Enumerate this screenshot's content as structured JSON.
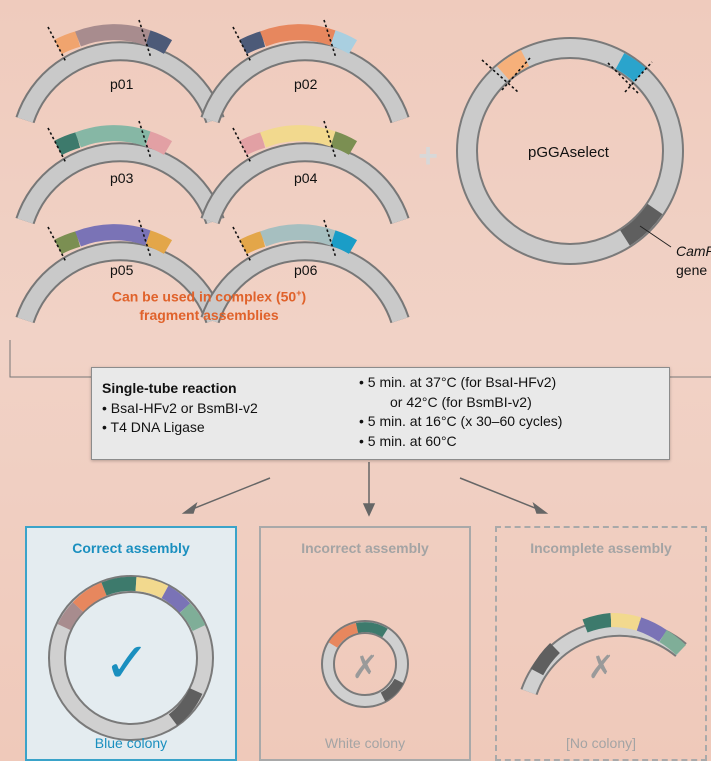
{
  "fragments": [
    {
      "label": "p01",
      "left": "#f0a46e",
      "middle": "#a88c8e",
      "right": "#4c5a78"
    },
    {
      "label": "p02",
      "left": "#4c5a78",
      "middle": "#e7875e",
      "right": "#a9cfe0"
    },
    {
      "label": "p03",
      "left": "#3d7a6c",
      "middle": "#86b7a5",
      "right": "#e2a0a4"
    },
    {
      "label": "p04",
      "left": "#e2a0a4",
      "middle": "#f2d98e",
      "right": "#7b8f52"
    },
    {
      "label": "p05",
      "left": "#7b8f52",
      "middle": "#7a73b6",
      "right": "#e3a649"
    },
    {
      "label": "p06",
      "left": "#e3a649",
      "middle": "#a6bfc0",
      "right": "#1a9dc7"
    }
  ],
  "plus_symbol": "+",
  "note": {
    "line1": "Can be used in complex (50",
    "superscript": "+",
    "line1_end": ")",
    "line2": "fragment assemblies"
  },
  "vector": {
    "label": "pGGAselect",
    "gene_italic": "CamR",
    "gene_word": "gene",
    "insert_left_color": "#f6b07a",
    "insert_right_color": "#2aa4cc"
  },
  "reaction": {
    "title": "Single-tube reaction",
    "enzymes": [
      "• BsaI-HFv2 or BsmBI-v2",
      "• T4 DNA Ligase"
    ],
    "steps": [
      "• 5 min. at 37°C (for BsaI-HFv2)",
      "or 42°C (for BsmBI-v2)",
      "• 5 min. at 16°C (x 30–60 cycles)",
      "• 5 min. at 60°C"
    ]
  },
  "outcomes": [
    {
      "title": "Correct assembly",
      "result": "Blue colony",
      "mark": "✓"
    },
    {
      "title": "Incorrect assembly",
      "result": "White colony",
      "mark": "✗"
    },
    {
      "title": "Incomplete assembly",
      "result": "[No colony]",
      "mark": "✗"
    }
  ],
  "colors": {
    "backbone": "#bdbdbd",
    "orange_text": "#e0622b",
    "blue_accent": "#1a8fbf",
    "grey_text": "#a4a4a4"
  }
}
